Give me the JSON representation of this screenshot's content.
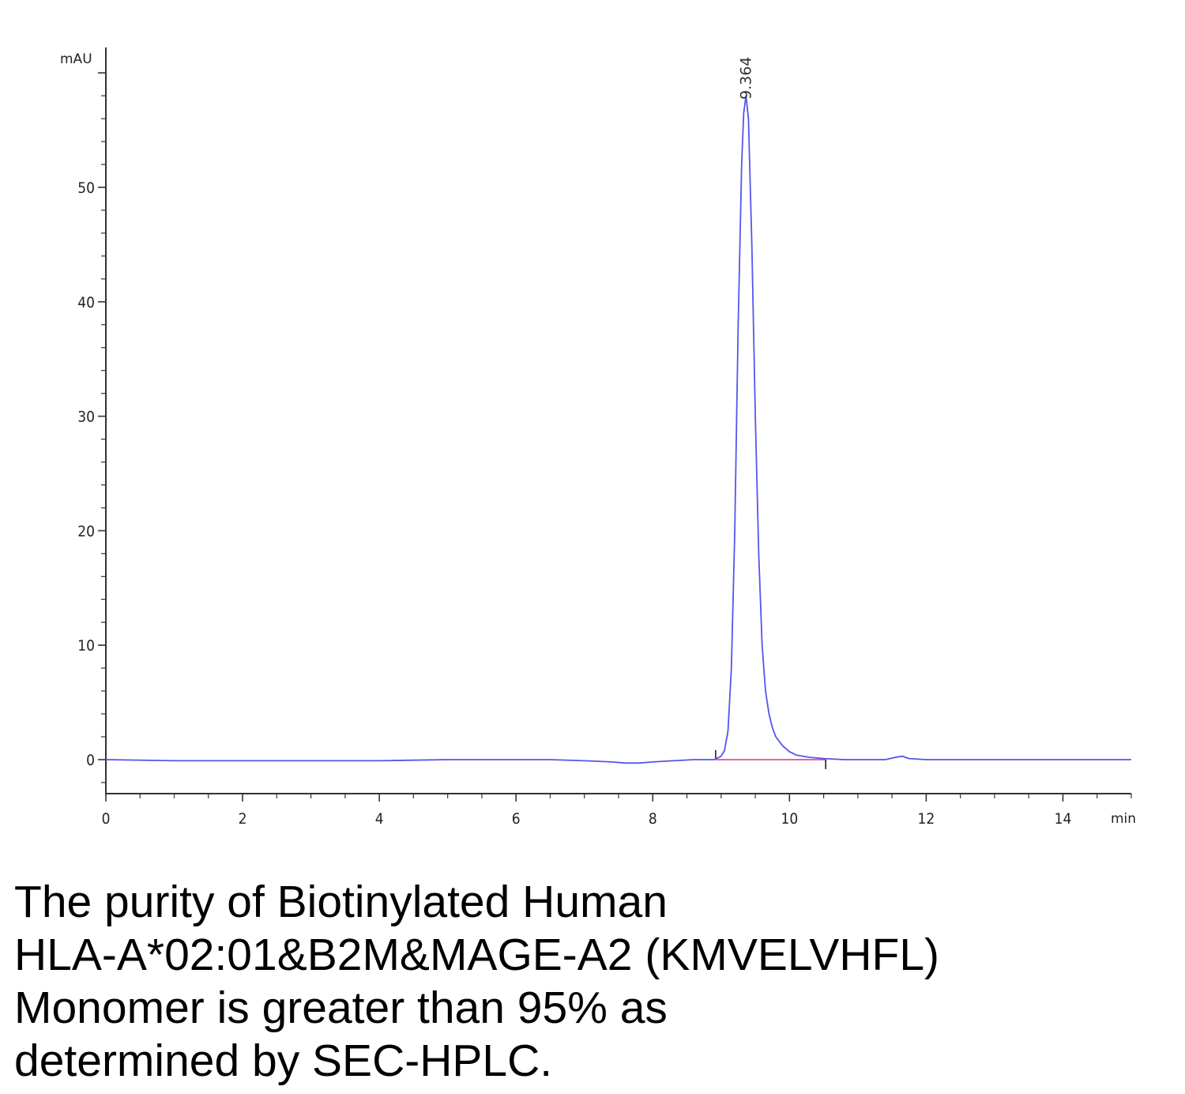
{
  "chart_data": {
    "type": "line",
    "y_unit": "mAU",
    "x_unit": "min",
    "xlim": [
      0,
      15
    ],
    "ylim": [
      -3,
      62
    ],
    "x_ticks": [
      "0",
      "2",
      "4",
      "6",
      "8",
      "10",
      "12",
      "14"
    ],
    "x_tick_values": [
      0,
      2,
      4,
      6,
      8,
      10,
      12,
      14
    ],
    "y_ticks": [
      "0",
      "10",
      "20",
      "30",
      "40",
      "50"
    ],
    "y_tick_values": [
      0,
      10,
      20,
      30,
      40,
      50
    ],
    "peak_label": "9.364",
    "peak_label_x": 9.364,
    "integration_start": 8.92,
    "integration_end": 10.53,
    "series": [
      {
        "color": "#5555ee",
        "x": [
          0,
          1,
          2,
          3,
          4,
          5,
          5.5,
          6,
          6.5,
          7,
          7.4,
          7.6,
          7.8,
          8.0,
          8.3,
          8.6,
          8.9,
          9.0,
          9.05,
          9.1,
          9.15,
          9.2,
          9.25,
          9.3,
          9.33,
          9.364,
          9.4,
          9.45,
          9.5,
          9.55,
          9.6,
          9.65,
          9.7,
          9.75,
          9.8,
          9.9,
          10.0,
          10.1,
          10.2,
          10.3,
          10.5,
          10.8,
          11.0,
          11.4,
          11.55,
          11.65,
          11.75,
          12,
          13,
          14,
          15
        ],
        "y": [
          0,
          -0.1,
          -0.1,
          -0.1,
          -0.1,
          0,
          0,
          0,
          0,
          -0.1,
          -0.2,
          -0.3,
          -0.3,
          -0.2,
          -0.1,
          0,
          0,
          0.3,
          0.8,
          2.5,
          8,
          20,
          38,
          52,
          56.5,
          58,
          56,
          45,
          30,
          18,
          10,
          6,
          4,
          2.8,
          2,
          1.2,
          0.7,
          0.4,
          0.3,
          0.2,
          0.1,
          0,
          0,
          0,
          0.2,
          0.3,
          0.1,
          0,
          0,
          0,
          0
        ]
      }
    ],
    "baseline_color": "#e0307a"
  },
  "caption": {
    "line1": "The purity of Biotinylated Human",
    "line2": "HLA-A*02:01&B2M&MAGE-A2 (KMVELVHFL)",
    "line3": "Monomer is greater than 95% as",
    "line4": "determined by SEC-HPLC."
  }
}
